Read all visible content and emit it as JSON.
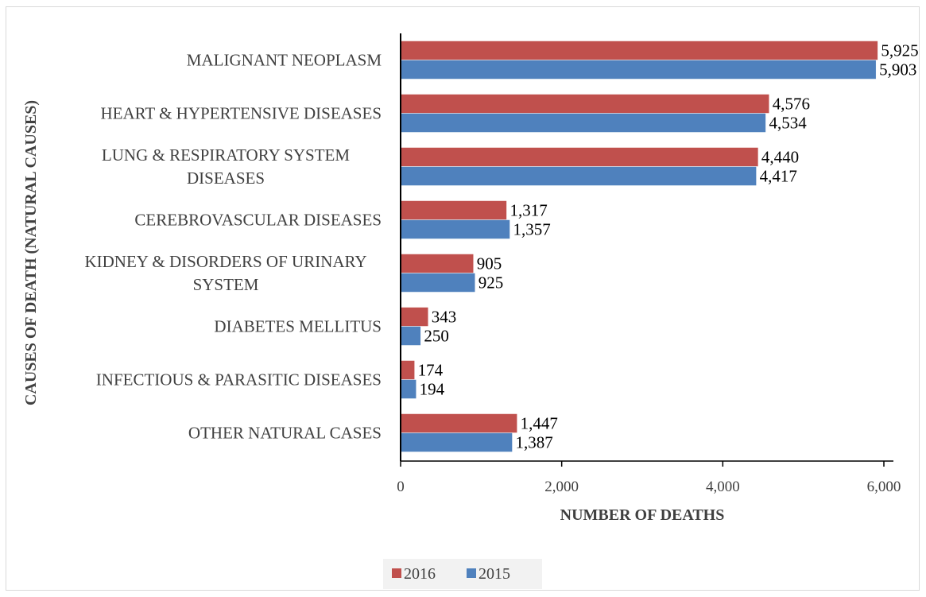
{
  "chart_data": {
    "type": "bar",
    "orientation": "horizontal",
    "categories": [
      "MALIGNANT NEOPLASM",
      "HEART & HYPERTENSIVE DISEASES",
      "LUNG & RESPIRATORY SYSTEM DISEASES",
      "CEREBROVASCULAR DISEASES",
      "KIDNEY & DISORDERS OF URINARY SYSTEM",
      "DIABETES MELLITUS",
      "INFECTIOUS & PARASITIC DISEASES",
      "OTHER NATURAL CASES"
    ],
    "category_lines": [
      [
        "MALIGNANT NEOPLASM"
      ],
      [
        "HEART & HYPERTENSIVE DISEASES"
      ],
      [
        "LUNG & RESPIRATORY SYSTEM",
        "DISEASES"
      ],
      [
        "CEREBROVASCULAR DISEASES"
      ],
      [
        "KIDNEY & DISORDERS OF URINARY",
        "SYSTEM"
      ],
      [
        "DIABETES MELLITUS"
      ],
      [
        "INFECTIOUS & PARASITIC DISEASES"
      ],
      [
        "OTHER NATURAL CASES"
      ]
    ],
    "series": [
      {
        "name": "2016",
        "color": "#c0504d",
        "values": [
          5925,
          4576,
          4440,
          1317,
          905,
          343,
          174,
          1447
        ],
        "labels": [
          "5,925",
          "4,576",
          "4,440",
          "1,317",
          "905",
          "343",
          "174",
          "1,447"
        ]
      },
      {
        "name": "2015",
        "color": "#4f81bd",
        "values": [
          5903,
          4534,
          4417,
          1357,
          925,
          250,
          194,
          1387
        ],
        "labels": [
          "5,903",
          "4,534",
          "4,417",
          "1,357",
          "925",
          "250",
          "194",
          "1,387"
        ]
      }
    ],
    "xlabel": "NUMBER OF DEATHS",
    "ylabel": "CAUSES OF DEATH (NATURAL CAUSES)",
    "xlim": [
      0,
      6000
    ],
    "xticks": [
      0,
      2000,
      4000,
      6000
    ],
    "xtick_labels": [
      "0",
      "2,000",
      "4,000",
      "6,000"
    ],
    "grid": false,
    "legend_position": "bottom"
  }
}
